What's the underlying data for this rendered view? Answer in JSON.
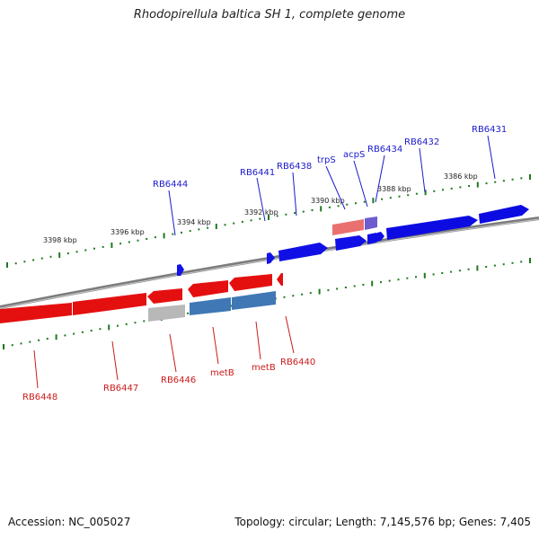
{
  "title": "Rhodopirellula baltica SH 1, complete genome",
  "footer": {
    "accession": "Accession: NC_005027",
    "summary": "Topology: circular; Length: 7,145,576 bp; Genes: 7,405"
  },
  "scale_labels": [
    "3398 kbp",
    "3396 kbp",
    "3394 kbp",
    "3392 kbp",
    "3390 kbp",
    "3388 kbp",
    "3386 kbp"
  ],
  "genes_forward": [
    "RB6444",
    "RB6441",
    "RB6438",
    "trpS",
    "acpS",
    "RB6434",
    "RB6432",
    "RB6431"
  ],
  "genes_reverse": [
    "RB6448",
    "RB6447",
    "RB6446",
    "metB",
    "metB",
    "RB6440"
  ],
  "colors": {
    "forward_label": "#1a1acc",
    "reverse_label": "#cc1a1a",
    "forward_gene": "#0a0ae6",
    "reverse_gene": "#e60a0a",
    "tick": "#1e7a1e",
    "backbone": "#808080"
  }
}
